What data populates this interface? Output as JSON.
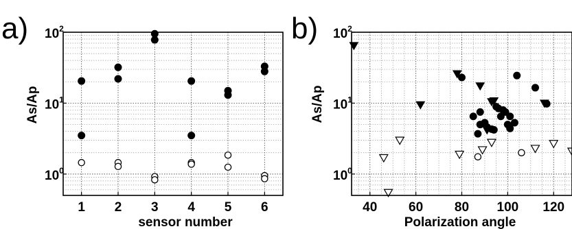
{
  "chart_data": [
    {
      "panel": "a)",
      "type": "scatter",
      "xlabel": "sensor number",
      "ylabel": "As/Ap",
      "xlim": [
        0.5,
        6.5
      ],
      "ylim": [
        0.5,
        100
      ],
      "yscale": "log",
      "grid": true,
      "xticks": [
        "1",
        "2",
        "3",
        "4",
        "5",
        "6"
      ],
      "yticks": [
        {
          "base": "10",
          "exp": "0"
        },
        {
          "base": "10",
          "exp": "1"
        },
        {
          "base": "10",
          "exp": "2"
        }
      ],
      "series": [
        {
          "marker": "filled-circle",
          "points": [
            [
              1,
              20.5
            ],
            [
              1,
              3.5
            ],
            [
              2,
              32
            ],
            [
              2,
              22
            ],
            [
              3,
              95
            ],
            [
              3,
              78
            ],
            [
              4,
              20.5
            ],
            [
              4,
              3.5
            ],
            [
              5,
              15
            ],
            [
              5,
              13
            ],
            [
              6,
              33
            ],
            [
              6,
              28
            ]
          ]
        },
        {
          "marker": "open-circle",
          "points": [
            [
              1,
              1.45
            ],
            [
              2,
              1.45
            ],
            [
              2,
              1.28
            ],
            [
              3,
              0.92
            ],
            [
              3,
              0.83
            ],
            [
              4,
              1.45
            ],
            [
              4,
              1.38
            ],
            [
              5,
              1.85
            ],
            [
              5,
              1.25
            ],
            [
              6,
              0.95
            ],
            [
              6,
              0.86
            ]
          ]
        }
      ]
    },
    {
      "panel": "b)",
      "type": "scatter",
      "xlabel": "Polarization angle",
      "ylabel": "As/Ap",
      "xlim": [
        32,
        128
      ],
      "ylim": [
        0.5,
        100
      ],
      "yscale": "log",
      "grid": true,
      "xticks": [
        "40",
        "60",
        "80",
        "100",
        "120"
      ],
      "yticks": [
        {
          "base": "10",
          "exp": "0"
        },
        {
          "base": "10",
          "exp": "1"
        },
        {
          "base": "10",
          "exp": "2"
        }
      ],
      "series": [
        {
          "marker": "filled-circle",
          "points": [
            [
              80,
              23
            ],
            [
              85,
              6.5
            ],
            [
              87,
              3.7
            ],
            [
              88,
              7.5
            ],
            [
              88,
              5
            ],
            [
              90,
              5.3
            ],
            [
              91,
              4.6
            ],
            [
              93,
              4.3
            ],
            [
              94,
              4.2
            ],
            [
              95,
              8.9
            ],
            [
              96,
              8.4
            ],
            [
              97,
              6.5
            ],
            [
              98,
              8
            ],
            [
              99,
              7.5
            ],
            [
              100,
              5
            ],
            [
              101,
              6.5
            ],
            [
              101,
              4.4
            ],
            [
              103,
              5.3
            ],
            [
              104,
              24.5
            ],
            [
              112,
              16.5
            ],
            [
              117,
              9.8
            ]
          ]
        },
        {
          "marker": "filled-triangle-down",
          "points": [
            [
              33,
              65
            ],
            [
              62,
              9.5
            ],
            [
              78,
              26
            ],
            [
              88,
              17.5
            ],
            [
              91,
              4.2
            ],
            [
              93,
              10.5
            ],
            [
              94,
              10.8
            ],
            [
              116,
              10
            ]
          ]
        },
        {
          "marker": "open-triangle-down",
          "points": [
            [
              46,
              1.7
            ],
            [
              48,
              0.55
            ],
            [
              53,
              3
            ],
            [
              79,
              1.9
            ],
            [
              89,
              2.2
            ],
            [
              93,
              2.8
            ],
            [
              112,
              2.3
            ],
            [
              120,
              2.7
            ],
            [
              128,
              2.1
            ]
          ]
        },
        {
          "marker": "open-circle",
          "points": [
            [
              87,
              1.75
            ],
            [
              106,
              2.0
            ]
          ]
        }
      ]
    }
  ]
}
